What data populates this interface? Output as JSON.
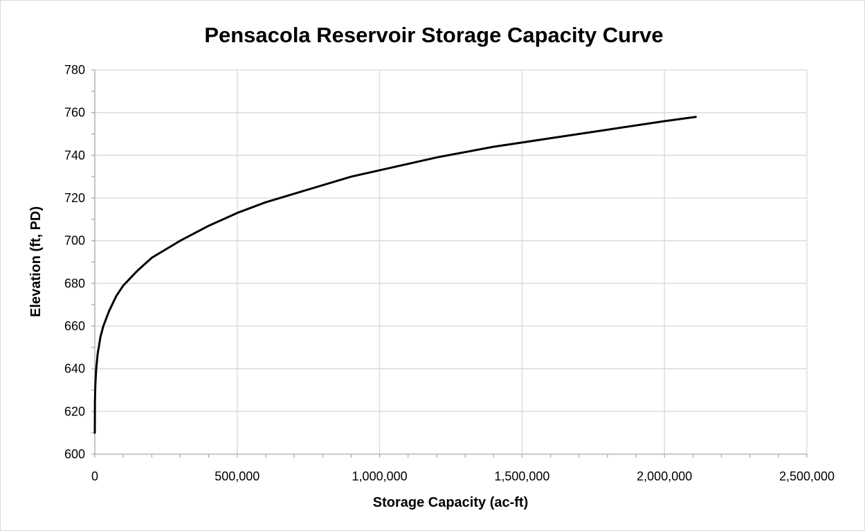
{
  "chart_data": {
    "type": "line",
    "title": "Pensacola Reservoir Storage Capacity Curve",
    "xlabel": "Storage Capacity (ac-ft)",
    "ylabel": "Elevation (ft, PD)",
    "xlim": [
      0,
      2500000
    ],
    "ylim": [
      600,
      780
    ],
    "x_ticks": [
      "0",
      "500,000",
      "1,000,000",
      "1,500,000",
      "2,000,000",
      "2,500,000"
    ],
    "x_tick_values": [
      0,
      500000,
      1000000,
      1500000,
      2000000,
      2500000
    ],
    "y_ticks": [
      "600",
      "620",
      "640",
      "660",
      "680",
      "700",
      "720",
      "740",
      "760",
      "780"
    ],
    "y_tick_values": [
      600,
      620,
      640,
      660,
      680,
      700,
      720,
      740,
      760,
      780
    ],
    "grid": true,
    "legend": "none",
    "series": [
      {
        "color": "#000000",
        "x": [
          0,
          500,
          2000,
          5000,
          10000,
          20000,
          30000,
          50000,
          75000,
          100000,
          150000,
          200000,
          250000,
          300000,
          400000,
          500000,
          600000,
          700000,
          800000,
          900000,
          1000000,
          1200000,
          1400000,
          1600000,
          1800000,
          2000000,
          2110000
        ],
        "y": [
          610,
          625,
          633,
          640,
          647,
          655,
          660,
          667,
          674,
          679,
          686,
          692,
          696,
          700,
          707,
          713,
          718,
          722,
          726,
          730,
          733,
          739,
          744,
          748,
          752,
          756,
          758
        ]
      }
    ]
  }
}
